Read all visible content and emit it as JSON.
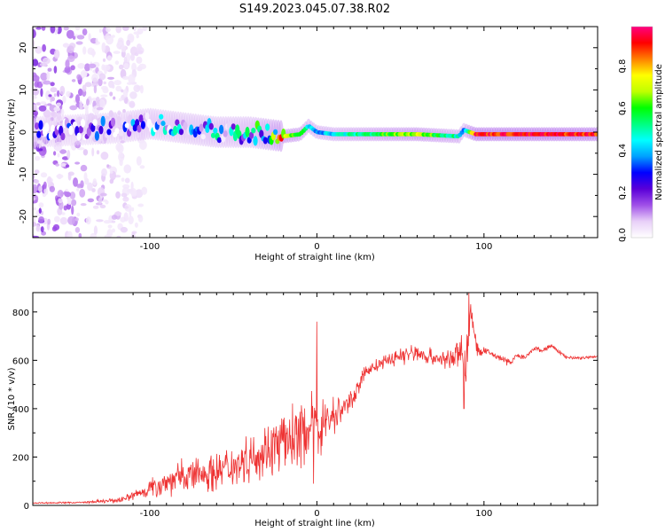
{
  "figure_title": "S149.2023.045.07.38.R02",
  "chart_data": [
    {
      "type": "heatmap",
      "title": "",
      "xlabel": "Height of straight line (km)",
      "ylabel": "Frequency (Hz)",
      "xlim": [
        -170,
        168
      ],
      "ylim": [
        -25,
        25
      ],
      "x_ticks": [
        -100,
        0,
        100
      ],
      "y_ticks": [
        -20,
        -10,
        0,
        10,
        20
      ],
      "colorbar": {
        "label": "Normalized spectral amplitude",
        "range": [
          0,
          1
        ],
        "ticks": [
          "0.0",
          "0.2",
          "0.4",
          "0.6",
          "0.8"
        ],
        "colormap": [
          "#ffffff",
          "#e8d0f8",
          "#a050e8",
          "#5a00d8",
          "#0000ff",
          "#00a0ff",
          "#00ffff",
          "#00ff80",
          "#00ff00",
          "#c0ff00",
          "#ffff00",
          "#ff8000",
          "#ff0000",
          "#ff0080"
        ]
      },
      "ridge": {
        "x": [
          -170,
          -120,
          -100,
          -80,
          -60,
          -40,
          -20,
          -10,
          -5,
          0,
          10,
          30,
          60,
          85,
          88,
          95,
          168
        ],
        "y": [
          0,
          1,
          2,
          1,
          0,
          0,
          -1,
          -0.5,
          1.5,
          0,
          -0.5,
          -0.5,
          -0.5,
          -1,
          0.5,
          -0.5,
          -0.5
        ],
        "amplitude": [
          0.05,
          0.12,
          0.22,
          0.25,
          0.28,
          0.32,
          0.7,
          0.6,
          0.45,
          0.4,
          0.45,
          0.55,
          0.7,
          0.5,
          0.4,
          0.92,
          0.92
        ]
      },
      "noise_region": {
        "x_range": [
          -170,
          -115
        ],
        "y_range": [
          -25,
          25
        ],
        "amplitude": 0.1
      }
    },
    {
      "type": "line",
      "title": "",
      "xlabel": "Height of straight line (km)",
      "ylabel": "SNR (10 * v/v)",
      "xlim": [
        -170,
        168
      ],
      "ylim": [
        0,
        880
      ],
      "x_ticks": [
        -100,
        0,
        100
      ],
      "y_ticks": [
        0,
        200,
        400,
        600,
        800
      ],
      "color": "#ee3333",
      "series": [
        {
          "x": [
            -170,
            -140,
            -120,
            -110,
            -100,
            -90,
            -80,
            -70,
            -60,
            -50,
            -40,
            -30,
            -20,
            -10,
            0,
            10,
            20,
            30,
            40,
            50,
            60,
            70,
            80,
            86,
            90,
            92,
            96,
            100,
            110,
            115,
            120,
            125,
            130,
            135,
            140,
            150,
            160,
            168
          ],
          "y": [
            10,
            12,
            20,
            40,
            70,
            100,
            120,
            130,
            140,
            170,
            200,
            230,
            260,
            300,
            330,
            370,
            430,
            560,
            590,
            620,
            630,
            610,
            600,
            640,
            580,
            820,
            630,
            640,
            610,
            590,
            620,
            610,
            650,
            640,
            660,
            610,
            610,
            615
          ],
          "spread": [
            3,
            4,
            10,
            20,
            40,
            60,
            70,
            80,
            80,
            90,
            100,
            110,
            120,
            130,
            140,
            80,
            40,
            30,
            30,
            40,
            40,
            40,
            40,
            80,
            150,
            30,
            40,
            15,
            15,
            15,
            10,
            10,
            10,
            10,
            10,
            8,
            8,
            8
          ]
        }
      ],
      "spikes": [
        {
          "x": 0,
          "y": 760
        },
        {
          "x": -2,
          "y": 90
        },
        {
          "x": 91,
          "y": 880
        },
        {
          "x": 88,
          "y": 400
        }
      ]
    }
  ]
}
